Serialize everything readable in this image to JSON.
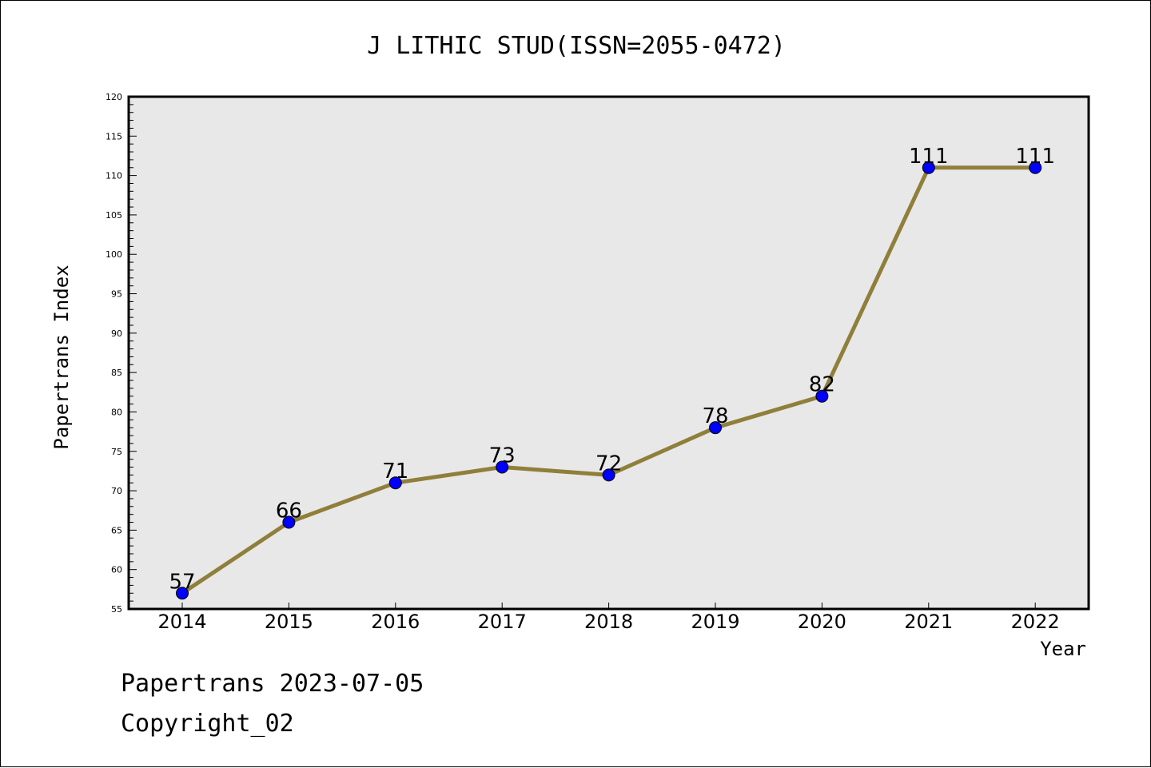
{
  "chart_data": {
    "type": "line",
    "title": "J LITHIC STUD(ISSN=2055-0472)",
    "xlabel": "Year",
    "ylabel": "Papertrans Index",
    "categories": [
      "2014",
      "2015",
      "2016",
      "2017",
      "2018",
      "2019",
      "2020",
      "2021",
      "2022"
    ],
    "series": [
      {
        "values": [
          57,
          66,
          71,
          73,
          72,
          78,
          82,
          111,
          111
        ]
      }
    ],
    "ylim": [
      55,
      120
    ],
    "yticks": [
      55,
      60,
      65,
      70,
      75,
      80,
      85,
      90,
      95,
      100,
      105,
      110,
      115,
      120
    ],
    "grid": false,
    "colors": {
      "line": "#8f7f3a",
      "marker": "#0000ff",
      "plot_bg": "#e8e8e8"
    }
  },
  "footer": {
    "line1": "Papertrans 2023-07-05",
    "line2": "Copyright_02"
  }
}
